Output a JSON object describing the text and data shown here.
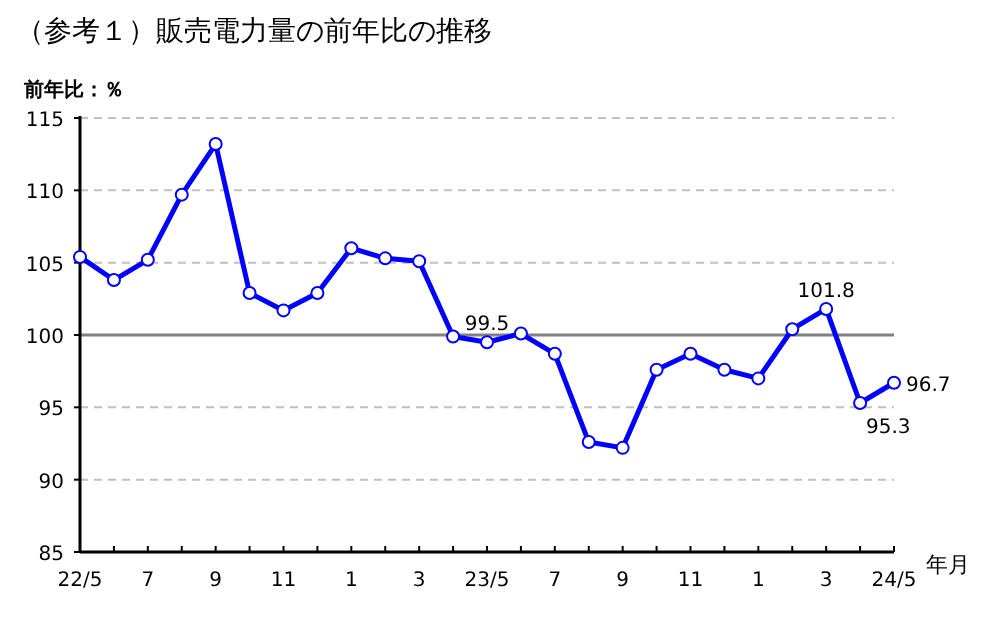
{
  "chart_data": {
    "type": "line",
    "title": "（参考１）販売電力量の前年比の推移",
    "ylabel": "前年比：％",
    "xlabel": "年月",
    "categories": [
      "22/5",
      null,
      "7",
      null,
      "9",
      null,
      "11",
      null,
      "1",
      null,
      "3",
      null,
      "23/5",
      null,
      "7",
      null,
      "9",
      null,
      "11",
      null,
      "1",
      null,
      "3",
      null,
      "24/5"
    ],
    "series": [
      {
        "color": "#0000ff",
        "values": [
          105.4,
          103.8,
          105.2,
          109.7,
          113.2,
          102.9,
          101.7,
          102.9,
          106.0,
          105.3,
          105.1,
          99.9,
          99.5,
          100.1,
          98.7,
          92.6,
          92.2,
          97.6,
          98.7,
          97.6,
          97.0,
          100.4,
          101.8,
          95.3,
          96.7
        ],
        "value_labels": [
          null,
          null,
          null,
          null,
          null,
          null,
          null,
          null,
          null,
          null,
          null,
          null,
          "99.5",
          null,
          null,
          null,
          null,
          null,
          null,
          null,
          null,
          null,
          "101.8",
          "95.3",
          "96.7"
        ]
      }
    ],
    "ylim": [
      85,
      115
    ],
    "yticks": [
      85,
      90,
      95,
      100,
      105,
      110,
      115
    ],
    "grid": "y",
    "marker": "circle",
    "line_style": "solid",
    "ref_lines": [
      {
        "axis": "y",
        "value": 100,
        "color": "#808080"
      }
    ]
  }
}
